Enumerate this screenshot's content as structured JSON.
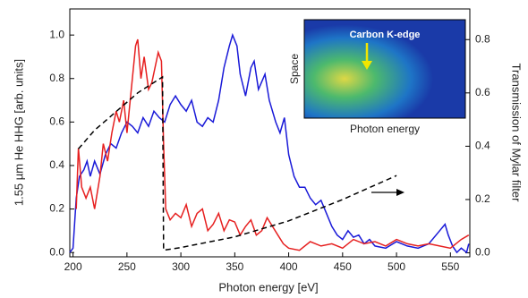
{
  "chart_data": {
    "type": "line",
    "xlabel": "Photon energy [eV]",
    "ylabel": "1.55 µm He HHG [arb. units]",
    "y2label": "Transmission of Mylar filter",
    "xlim": [
      197,
      568
    ],
    "ylim": [
      -0.02,
      1.12
    ],
    "y2lim": [
      -0.015,
      0.915
    ],
    "xticks": [
      200,
      250,
      300,
      350,
      400,
      450,
      500,
      550
    ],
    "yticks": [
      {
        "value": 0,
        "label": "0.0"
      },
      {
        "value": 0.2,
        "label": "0.2"
      },
      {
        "value": 0.4,
        "label": "0.4"
      },
      {
        "value": 0.6,
        "label": "0.6"
      },
      {
        "value": 0.8,
        "label": "0.8"
      },
      {
        "value": 1,
        "label": "1.0"
      }
    ],
    "y2ticks": [
      {
        "value": 0,
        "label": "0.0"
      },
      {
        "value": 0.2,
        "label": "0.2"
      },
      {
        "value": 0.4,
        "label": "0.4"
      },
      {
        "value": 0.6,
        "label": "0.6"
      },
      {
        "value": 0.8,
        "label": "0.8"
      }
    ],
    "inset": {
      "title": "Carbon K-edge",
      "xlabel": "Photon energy",
      "ylabel": "Space"
    },
    "series": [
      {
        "color": "#1a1ad8",
        "x": [
          197,
          200,
          203,
          206,
          210,
          213,
          216,
          220,
          225,
          230,
          235,
          240,
          245,
          250,
          255,
          260,
          265,
          270,
          275,
          280,
          285,
          290,
          295,
          300,
          305,
          310,
          315,
          320,
          325,
          330,
          335,
          340,
          345,
          348,
          352,
          355,
          360,
          365,
          368,
          372,
          378,
          382,
          388,
          392,
          396,
          400,
          405,
          410,
          415,
          420,
          425,
          430,
          435,
          440,
          445,
          450,
          455,
          460,
          465,
          470,
          475,
          480,
          490,
          500,
          510,
          520,
          530,
          540,
          545,
          548,
          552,
          556,
          560,
          565,
          567
        ],
        "values": [
          0,
          0.02,
          0.25,
          0.35,
          0.38,
          0.42,
          0.35,
          0.42,
          0.36,
          0.45,
          0.5,
          0.48,
          0.55,
          0.6,
          0.58,
          0.55,
          0.62,
          0.58,
          0.65,
          0.62,
          0.6,
          0.68,
          0.72,
          0.68,
          0.65,
          0.7,
          0.6,
          0.58,
          0.62,
          0.6,
          0.7,
          0.85,
          0.95,
          1.0,
          0.95,
          0.82,
          0.72,
          0.85,
          0.88,
          0.75,
          0.82,
          0.7,
          0.6,
          0.55,
          0.62,
          0.45,
          0.35,
          0.3,
          0.3,
          0.25,
          0.22,
          0.24,
          0.18,
          0.12,
          0.08,
          0.06,
          0.1,
          0.07,
          0.08,
          0.04,
          0.06,
          0.03,
          0.02,
          0.05,
          0.03,
          0.02,
          0.04,
          0.1,
          0.13,
          0.08,
          0.03,
          0,
          0.02,
          0,
          0.04
        ]
      },
      {
        "color": "#e62020",
        "x": [
          203,
          205,
          208,
          212,
          216,
          220,
          225,
          228,
          232,
          236,
          240,
          243,
          247,
          250,
          255,
          258,
          260,
          263,
          266,
          270,
          273,
          276,
          279,
          282,
          284,
          286,
          290,
          295,
          300,
          305,
          310,
          315,
          320,
          325,
          330,
          335,
          340,
          345,
          350,
          355,
          360,
          365,
          370,
          375,
          380,
          385,
          390,
          395,
          400,
          410,
          420,
          430,
          440,
          450,
          460,
          470,
          480,
          490,
          500,
          510,
          520,
          530,
          540,
          550,
          560,
          567
        ],
        "values": [
          0.2,
          0.48,
          0.3,
          0.25,
          0.3,
          0.2,
          0.35,
          0.5,
          0.42,
          0.55,
          0.65,
          0.6,
          0.7,
          0.55,
          0.8,
          0.95,
          0.98,
          0.8,
          0.9,
          0.75,
          0.78,
          0.85,
          0.92,
          0.88,
          0.5,
          0.2,
          0.15,
          0.18,
          0.16,
          0.22,
          0.12,
          0.18,
          0.2,
          0.1,
          0.13,
          0.18,
          0.1,
          0.15,
          0.14,
          0.08,
          0.12,
          0.15,
          0.08,
          0.1,
          0.16,
          0.12,
          0.08,
          0.04,
          0.02,
          0.01,
          0.05,
          0.03,
          0.04,
          0.02,
          0.06,
          0.04,
          0.05,
          0.03,
          0.06,
          0.04,
          0.03,
          0.04,
          0.03,
          0.02,
          0.06,
          0.08
        ]
      },
      {
        "color": "#000000",
        "axis": "y2",
        "dashed": true,
        "x": [
          205,
          220,
          240,
          260,
          283,
          284,
          300,
          350,
          400,
          450,
          500
        ],
        "values": [
          0.39,
          0.46,
          0.53,
          0.6,
          0.66,
          0.01,
          0.02,
          0.06,
          0.12,
          0.2,
          0.29
        ]
      }
    ]
  }
}
